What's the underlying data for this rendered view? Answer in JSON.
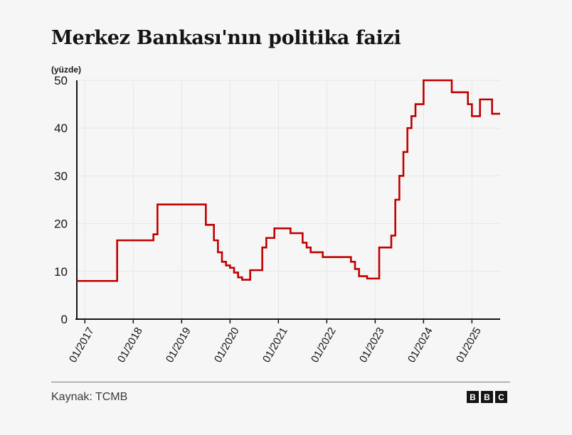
{
  "title": "Merkez Bankası'nın politika faizi",
  "unit_label": "(yüzde)",
  "source": "Kaynak: TCMB",
  "logo": [
    "B",
    "B",
    "C"
  ],
  "colors": {
    "line": "#c00000",
    "axis": "#141414",
    "grid": "#e6e6e6"
  },
  "chart_data": {
    "type": "line",
    "step": true,
    "y_ticks": [
      0,
      10,
      20,
      30,
      40,
      50
    ],
    "ylim": [
      0,
      50
    ],
    "x_ticks": [
      "01/2017",
      "01/2018",
      "01/2019",
      "01/2020",
      "01/2021",
      "01/2022",
      "01/2023",
      "01/2024",
      "01/2025"
    ],
    "xlim": [
      "2016-11",
      "2025-08"
    ],
    "series": [
      {
        "points": [
          [
            "2016-11",
            8
          ],
          [
            "2017-09",
            16.5
          ],
          [
            "2018-06",
            17.75
          ],
          [
            "2018-07",
            24
          ],
          [
            "2019-07",
            19.75
          ],
          [
            "2019-09",
            16.5
          ],
          [
            "2019-10",
            14
          ],
          [
            "2019-11",
            12
          ],
          [
            "2019-12",
            11.25
          ],
          [
            "2020-01",
            10.75
          ],
          [
            "2020-02",
            9.75
          ],
          [
            "2020-03",
            8.75
          ],
          [
            "2020-04",
            8.25
          ],
          [
            "2020-06",
            10.25
          ],
          [
            "2020-09",
            15
          ],
          [
            "2020-10",
            17
          ],
          [
            "2020-12",
            19
          ],
          [
            "2021-04",
            18
          ],
          [
            "2021-07",
            16
          ],
          [
            "2021-08",
            15
          ],
          [
            "2021-09",
            14
          ],
          [
            "2021-12",
            13
          ],
          [
            "2022-07",
            12
          ],
          [
            "2022-08",
            10.5
          ],
          [
            "2022-09",
            9
          ],
          [
            "2022-11",
            8.5
          ],
          [
            "2023-02",
            15
          ],
          [
            "2023-05",
            17.5
          ],
          [
            "2023-06",
            25
          ],
          [
            "2023-07",
            30
          ],
          [
            "2023-08",
            35
          ],
          [
            "2023-09",
            40
          ],
          [
            "2023-10",
            42.5
          ],
          [
            "2023-11",
            45
          ],
          [
            "2024-01",
            50
          ],
          [
            "2024-08",
            47.5
          ],
          [
            "2024-12",
            45
          ],
          [
            "2025-01",
            42.5
          ],
          [
            "2025-03",
            46
          ],
          [
            "2025-06",
            43
          ]
        ],
        "end": "2025-08"
      }
    ]
  }
}
